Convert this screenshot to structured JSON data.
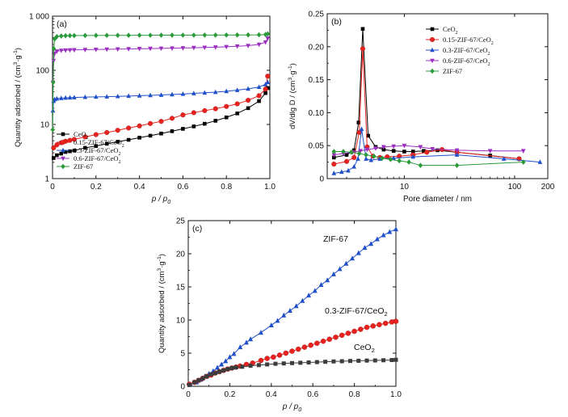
{
  "chart_data": [
    {
      "id": "a",
      "type": "line",
      "panel_label": "(a)",
      "xlabel": "p / p0",
      "ylabel": "Quantity adsorbed / (cm3·g-1)",
      "xlim": [
        0,
        1.0
      ],
      "ylim": [
        1,
        1000
      ],
      "yscale": "log",
      "xticks": [
        "0",
        "0.2",
        "0.4",
        "0.6",
        "0.8",
        "1.0"
      ],
      "xtick_values": [
        0,
        0.2,
        0.4,
        0.6,
        0.8,
        1.0
      ],
      "yticks": [
        "1",
        "10",
        "100",
        "1 000"
      ],
      "ytick_values": [
        1,
        10,
        100,
        1000
      ],
      "legend_position": "lower-left",
      "series": [
        {
          "name": "CeO2",
          "color": "#000000",
          "marker": "square",
          "x": [
            0.005,
            0.02,
            0.04,
            0.06,
            0.08,
            0.1,
            0.15,
            0.2,
            0.25,
            0.3,
            0.35,
            0.4,
            0.45,
            0.5,
            0.55,
            0.6,
            0.65,
            0.7,
            0.75,
            0.8,
            0.85,
            0.9,
            0.95,
            0.98,
            0.99
          ],
          "y": [
            2.4,
            2.7,
            2.9,
            3.1,
            3.2,
            3.3,
            3.7,
            4.0,
            4.4,
            4.8,
            5.2,
            5.7,
            6.2,
            6.8,
            7.5,
            8.3,
            9.2,
            10.3,
            11.7,
            13.5,
            16.0,
            20.0,
            27.0,
            38.0,
            47.0
          ]
        },
        {
          "name": "0.15-ZIF-67/CeO2",
          "color": "#e8231f",
          "marker": "circle",
          "x": [
            0.005,
            0.02,
            0.04,
            0.06,
            0.08,
            0.1,
            0.15,
            0.2,
            0.25,
            0.3,
            0.35,
            0.4,
            0.45,
            0.5,
            0.55,
            0.6,
            0.65,
            0.7,
            0.75,
            0.8,
            0.85,
            0.9,
            0.95,
            0.98,
            0.99
          ],
          "y": [
            3.7,
            4.2,
            4.6,
            4.9,
            5.1,
            5.3,
            5.9,
            6.5,
            7.1,
            7.8,
            8.6,
            9.4,
            10.4,
            11.4,
            13.0,
            15.0,
            16.5,
            18.0,
            19.5,
            21.5,
            24.0,
            28.0,
            34.0,
            45.0,
            78.0
          ]
        },
        {
          "name": "0.3-ZIF-67/CeO2",
          "color": "#1f4fc9",
          "marker": "triangle-up",
          "x": [
            0.002,
            0.005,
            0.01,
            0.02,
            0.04,
            0.06,
            0.08,
            0.1,
            0.15,
            0.2,
            0.25,
            0.3,
            0.35,
            0.4,
            0.45,
            0.5,
            0.55,
            0.6,
            0.65,
            0.7,
            0.75,
            0.8,
            0.85,
            0.9,
            0.95,
            0.98,
            0.99
          ],
          "y": [
            18.0,
            27.0,
            29.0,
            30.0,
            30.5,
            31.0,
            31.3,
            31.5,
            32.0,
            32.3,
            32.6,
            33.0,
            33.5,
            34.0,
            34.5,
            35.0,
            35.8,
            36.5,
            37.5,
            38.5,
            39.5,
            41.0,
            43.0,
            45.5,
            49.0,
            55.0,
            60.0
          ]
        },
        {
          "name": "0.6-ZIF-67/CeO2",
          "color": "#9b2fc0",
          "marker": "triangle-down",
          "x": [
            0.002,
            0.005,
            0.01,
            0.02,
            0.04,
            0.06,
            0.08,
            0.1,
            0.15,
            0.2,
            0.25,
            0.3,
            0.35,
            0.4,
            0.45,
            0.5,
            0.55,
            0.6,
            0.65,
            0.7,
            0.75,
            0.8,
            0.85,
            0.9,
            0.95,
            0.98,
            0.99
          ],
          "y": [
            60.0,
            150.0,
            205.0,
            225.0,
            232.0,
            235.0,
            237.0,
            238.0,
            240.0,
            242.0,
            244.0,
            246.0,
            248.0,
            250.0,
            252.0,
            254.0,
            256.0,
            258.0,
            261.0,
            264.0,
            267.0,
            272.0,
            278.0,
            285.0,
            300.0,
            330.0,
            390.0
          ]
        },
        {
          "name": "ZIF-67",
          "color": "#2a9a3a",
          "marker": "diamond",
          "x": [
            0.001,
            0.003,
            0.006,
            0.01,
            0.02,
            0.04,
            0.06,
            0.08,
            0.1,
            0.15,
            0.2,
            0.25,
            0.3,
            0.35,
            0.4,
            0.45,
            0.5,
            0.55,
            0.6,
            0.65,
            0.7,
            0.75,
            0.8,
            0.85,
            0.9,
            0.95,
            0.98,
            0.99
          ],
          "y": [
            8.0,
            60.0,
            250.0,
            380.0,
            420.0,
            430.0,
            435.0,
            437.0,
            438.0,
            440.0,
            441.0,
            442.0,
            443.0,
            443.0,
            444.0,
            444.0,
            445.0,
            445.0,
            446.0,
            446.0,
            447.0,
            447.0,
            448.0,
            449.0,
            450.0,
            452.0,
            458.0,
            470.0
          ]
        }
      ]
    },
    {
      "id": "b",
      "type": "line",
      "panel_label": "(b)",
      "xlabel": "Pore diameter / nm",
      "ylabel": "dV/dlg D / (cm3·g-1)",
      "xlim": [
        2,
        200
      ],
      "ylim": [
        0,
        0.25
      ],
      "xscale": "log",
      "xticks": [
        "10",
        "100",
        "200"
      ],
      "xtick_values": [
        10,
        100,
        200
      ],
      "yticks": [
        "0",
        "0.05",
        "0.10",
        "0.15",
        "0.20",
        "0.25"
      ],
      "ytick_values": [
        0,
        0.05,
        0.1,
        0.15,
        0.2,
        0.25
      ],
      "legend_position": "top-right",
      "series": [
        {
          "name": "CeO2",
          "color": "#000000",
          "marker": "square",
          "x": [
            2.3,
            3.0,
            3.5,
            3.85,
            4.2,
            4.7,
            5.5,
            6.5,
            8.0,
            10.0,
            12.0,
            15.0,
            20.0,
            30.0,
            60.0,
            110.0
          ],
          "y": [
            0.032,
            0.036,
            0.043,
            0.085,
            0.227,
            0.065,
            0.048,
            0.044,
            0.042,
            0.041,
            0.041,
            0.042,
            0.043,
            0.04,
            0.035,
            0.03
          ]
        },
        {
          "name": "0.15-ZIF-67/CeO2",
          "color": "#e8231f",
          "marker": "circle",
          "x": [
            2.3,
            3.0,
            3.5,
            3.9,
            4.2,
            4.6,
            5.2,
            6.0,
            7.0,
            9.0,
            12.0,
            16.0,
            22.0,
            30.0,
            110.0
          ],
          "y": [
            0.022,
            0.026,
            0.032,
            0.07,
            0.197,
            0.048,
            0.034,
            0.032,
            0.033,
            0.034,
            0.036,
            0.04,
            0.044,
            0.04,
            0.03
          ]
        },
        {
          "name": "0.3-ZIF-67/CeO2",
          "color": "#1f4fc9",
          "marker": "triangle-up",
          "x": [
            2.3,
            2.7,
            3.1,
            3.5,
            3.8,
            4.1,
            4.5,
            5.0,
            6.0,
            8.0,
            12.0,
            30.0,
            80.0,
            170.0
          ],
          "y": [
            0.008,
            0.01,
            0.012,
            0.018,
            0.03,
            0.075,
            0.03,
            0.028,
            0.03,
            0.031,
            0.033,
            0.036,
            0.03,
            0.025
          ]
        },
        {
          "name": "0.6-ZIF-67/CeO2",
          "color": "#9b2fc0",
          "marker": "triangle-down",
          "x": [
            2.3,
            2.8,
            3.4,
            4.0,
            4.6,
            5.5,
            6.5,
            8.0,
            10.0,
            14.0,
            18.0,
            30.0,
            60.0,
            120.0
          ],
          "y": [
            0.036,
            0.038,
            0.04,
            0.042,
            0.044,
            0.046,
            0.048,
            0.049,
            0.05,
            0.048,
            0.045,
            0.043,
            0.042,
            0.042
          ]
        },
        {
          "name": "ZIF-67",
          "color": "#2a9a3a",
          "marker": "diamond",
          "x": [
            2.3,
            2.8,
            3.3,
            3.9,
            4.5,
            5.3,
            6.3,
            7.5,
            9.0,
            11.0,
            14.0,
            30.0,
            120.0
          ],
          "y": [
            0.041,
            0.041,
            0.04,
            0.038,
            0.036,
            0.034,
            0.031,
            0.029,
            0.027,
            0.025,
            0.02,
            0.02,
            0.025
          ]
        }
      ]
    },
    {
      "id": "c",
      "type": "line",
      "panel_label": "(c)",
      "xlabel": "p / p0",
      "ylabel": "Quantity adsorbed / (cm3·g-1)",
      "xlim": [
        0,
        1.0
      ],
      "ylim": [
        0,
        25
      ],
      "xticks": [
        "0",
        "0.2",
        "0.4",
        "0.6",
        "0.8",
        "1.0"
      ],
      "xtick_values": [
        0,
        0.2,
        0.4,
        0.6,
        0.8,
        1.0
      ],
      "yticks": [
        "0",
        "5",
        "10",
        "15",
        "20",
        "25"
      ],
      "ytick_values": [
        0,
        5,
        10,
        15,
        20,
        25
      ],
      "annotations": [
        "ZIF-67",
        "0.3-ZIF-67/CeO2",
        "CeO2"
      ],
      "series": [
        {
          "name": "ZIF-67",
          "color": "#1f4fc9",
          "marker": "triangle-up",
          "x": [
            0.01,
            0.04,
            0.06,
            0.08,
            0.1,
            0.12,
            0.14,
            0.16,
            0.18,
            0.2,
            0.22,
            0.25,
            0.28,
            0.3,
            0.35,
            0.4,
            0.43,
            0.46,
            0.49,
            0.52,
            0.55,
            0.58,
            0.61,
            0.64,
            0.67,
            0.7,
            0.73,
            0.76,
            0.79,
            0.82,
            0.85,
            0.88,
            0.91,
            0.94,
            0.97,
            1.0
          ],
          "y": [
            0.3,
            0.6,
            1.0,
            1.5,
            1.9,
            2.3,
            2.8,
            3.3,
            3.8,
            4.4,
            4.9,
            5.9,
            6.6,
            7.1,
            8.1,
            9.2,
            9.9,
            10.7,
            11.4,
            12.1,
            12.9,
            13.7,
            14.4,
            15.3,
            16.0,
            16.9,
            17.7,
            18.5,
            19.3,
            20.1,
            20.9,
            21.5,
            22.2,
            22.8,
            23.3,
            23.7
          ]
        },
        {
          "name": "0.3-ZIF-67/CeO2",
          "color": "#e8231f",
          "marker": "circle",
          "x": [
            0.005,
            0.03,
            0.05,
            0.07,
            0.09,
            0.11,
            0.13,
            0.15,
            0.17,
            0.19,
            0.21,
            0.23,
            0.25,
            0.28,
            0.31,
            0.35,
            0.38,
            0.41,
            0.44,
            0.47,
            0.5,
            0.53,
            0.56,
            0.59,
            0.62,
            0.65,
            0.68,
            0.71,
            0.74,
            0.77,
            0.8,
            0.83,
            0.86,
            0.89,
            0.92,
            0.95,
            0.98,
            1.0
          ],
          "y": [
            0.3,
            0.6,
            0.9,
            1.2,
            1.5,
            1.7,
            2.0,
            2.2,
            2.4,
            2.6,
            2.75,
            2.9,
            3.05,
            3.3,
            3.5,
            3.9,
            4.2,
            4.4,
            4.7,
            5.0,
            5.3,
            5.6,
            5.9,
            6.2,
            6.5,
            6.8,
            7.1,
            7.4,
            7.7,
            8.0,
            8.3,
            8.6,
            8.9,
            9.1,
            9.3,
            9.5,
            9.7,
            9.8
          ]
        },
        {
          "name": "CeO2",
          "color": "#3c3c3c",
          "marker": "square",
          "x": [
            0.005,
            0.03,
            0.05,
            0.07,
            0.09,
            0.11,
            0.13,
            0.15,
            0.17,
            0.19,
            0.21,
            0.23,
            0.26,
            0.3,
            0.34,
            0.38,
            0.42,
            0.46,
            0.5,
            0.54,
            0.58,
            0.62,
            0.66,
            0.7,
            0.74,
            0.78,
            0.82,
            0.86,
            0.9,
            0.94,
            0.98,
            1.0
          ],
          "y": [
            0.2,
            0.6,
            0.9,
            1.2,
            1.5,
            1.8,
            2.0,
            2.2,
            2.4,
            2.6,
            2.75,
            2.85,
            2.95,
            3.1,
            3.2,
            3.3,
            3.4,
            3.45,
            3.5,
            3.55,
            3.6,
            3.65,
            3.7,
            3.75,
            3.78,
            3.82,
            3.85,
            3.88,
            3.9,
            3.93,
            3.96,
            4.0
          ]
        }
      ]
    }
  ]
}
